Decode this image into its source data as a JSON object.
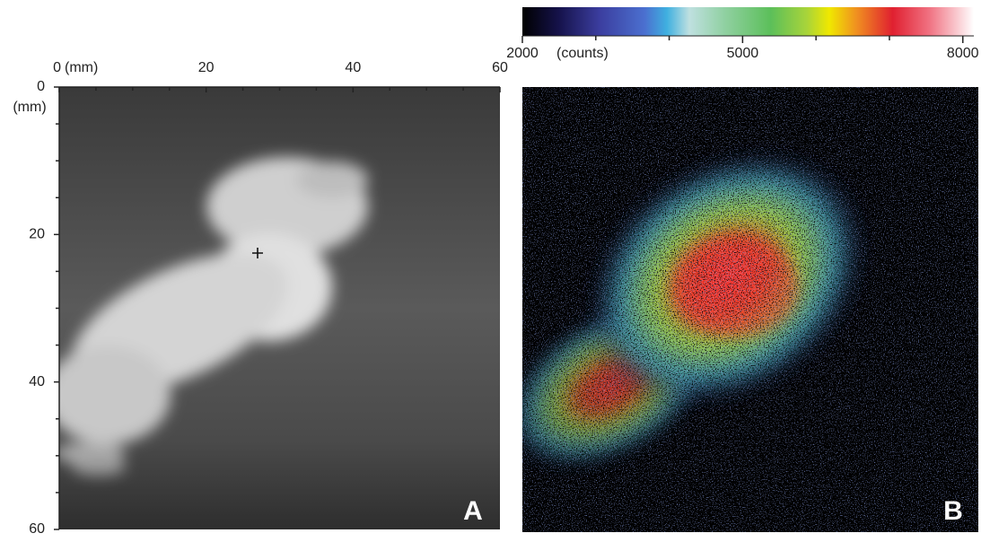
{
  "panel_a": {
    "letter": "A",
    "x_axis": {
      "unit": "(mm)",
      "lim": [
        0,
        60
      ],
      "ticks": [
        0,
        20,
        40,
        60
      ],
      "minor_ticks": [
        5,
        10,
        15,
        25,
        30,
        35,
        45,
        50,
        55
      ]
    },
    "y_axis": {
      "unit": "(mm)",
      "lim": [
        0,
        60
      ],
      "ticks": [
        0,
        20,
        40,
        60
      ],
      "minor_ticks": [
        5,
        10,
        15,
        25,
        30,
        35,
        45,
        50,
        55
      ]
    }
  },
  "panel_b": {
    "letter": "B"
  },
  "colorbar": {
    "unit": "(counts)",
    "lim": [
      2000,
      8150
    ],
    "ticks": [
      2000,
      5000,
      8000
    ],
    "minor_ticks": [
      3000,
      4000,
      6000,
      7000
    ]
  }
}
